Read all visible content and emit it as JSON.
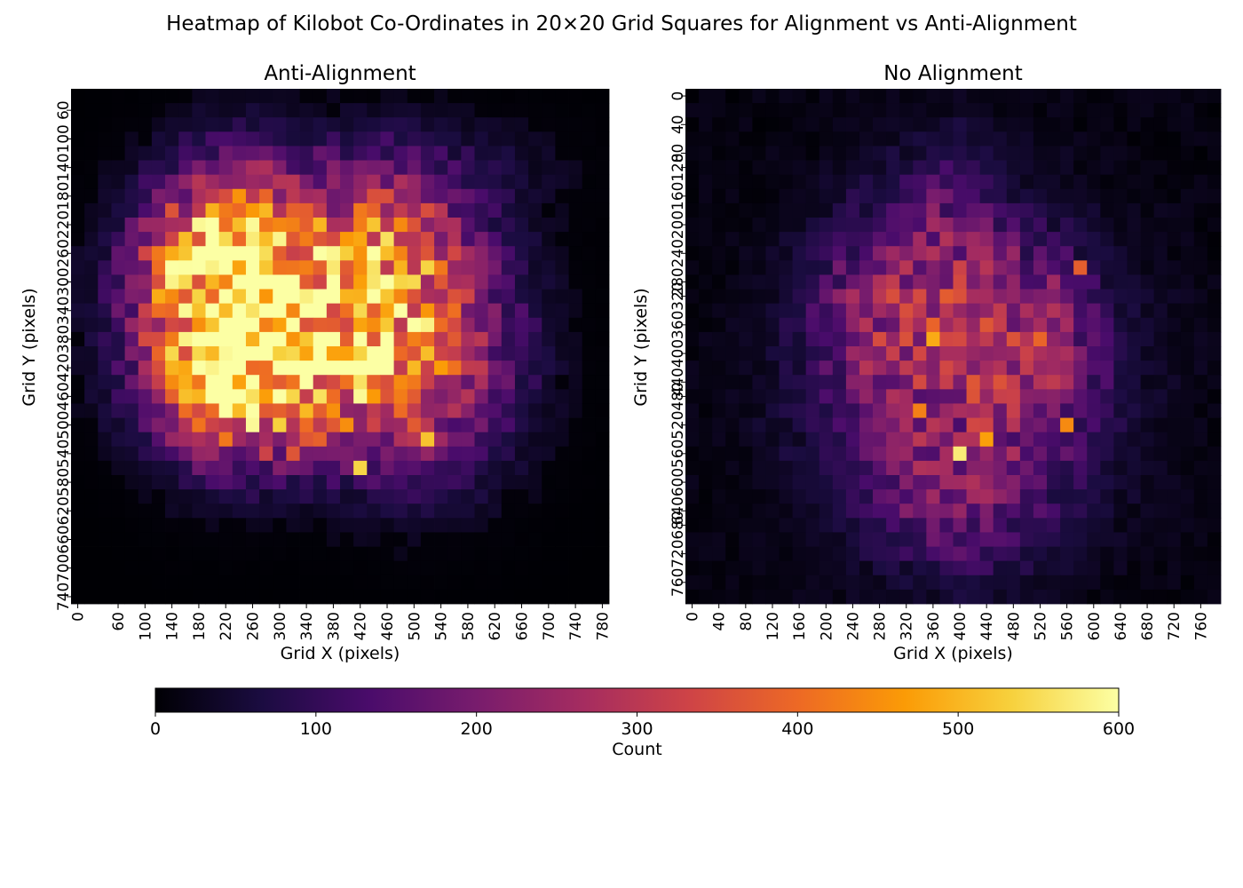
{
  "figure": {
    "title": "Heatmap of Kilobot Co-Ordinates in 20×20 Grid Squares for Alignment vs Anti-Alignment"
  },
  "chart_data": [
    {
      "type": "heatmap",
      "title": "Anti-Alignment",
      "xlabel": "Grid X (pixels)",
      "ylabel": "Grid Y (pixels)",
      "cell_size_px": 20,
      "x_tick_labels": [
        "0",
        "60",
        "100",
        "140",
        "180",
        "220",
        "260",
        "300",
        "340",
        "380",
        "420",
        "460",
        "500",
        "540",
        "580",
        "620",
        "660",
        "700",
        "740",
        "780"
      ],
      "y_tick_labels": [
        "60",
        "100",
        "140",
        "180",
        "220",
        "260",
        "300",
        "340",
        "380",
        "420",
        "460",
        "500",
        "540",
        "580",
        "620",
        "660",
        "700",
        "740"
      ],
      "description_of_values": "approximate counts per 20x20 grid cell; rows top to bottom, 40 columns x 36 rows",
      "grid": "generated",
      "colorscale": "inferno",
      "vmin": 0,
      "vmax": 600
    },
    {
      "type": "heatmap",
      "title": "No Alignment",
      "xlabel": "Grid X (pixels)",
      "ylabel": "Grid Y (pixels)",
      "cell_size_px": 20,
      "x_tick_labels": [
        "0",
        "40",
        "80",
        "120",
        "160",
        "200",
        "240",
        "280",
        "320",
        "360",
        "400",
        "440",
        "480",
        "520",
        "560",
        "600",
        "640",
        "680",
        "720",
        "760"
      ],
      "y_tick_labels": [
        "0",
        "40",
        "80",
        "120",
        "160",
        "200",
        "240",
        "280",
        "320",
        "360",
        "400",
        "440",
        "480",
        "520",
        "560",
        "600",
        "640",
        "680",
        "720",
        "760"
      ],
      "grid": "generated",
      "colorscale": "inferno",
      "vmin": 0,
      "vmax": 600
    }
  ],
  "colorbar": {
    "label": "Count",
    "ticks": [
      "0",
      "100",
      "200",
      "300",
      "400",
      "500",
      "600"
    ],
    "min": 0,
    "max": 600
  },
  "colors": {
    "inferno": [
      "#000004",
      "#1b0c41",
      "#4a0c6b",
      "#781c6d",
      "#a52c60",
      "#cf4446",
      "#ed6925",
      "#fb9b06",
      "#f7d13d",
      "#fcffa4"
    ]
  }
}
